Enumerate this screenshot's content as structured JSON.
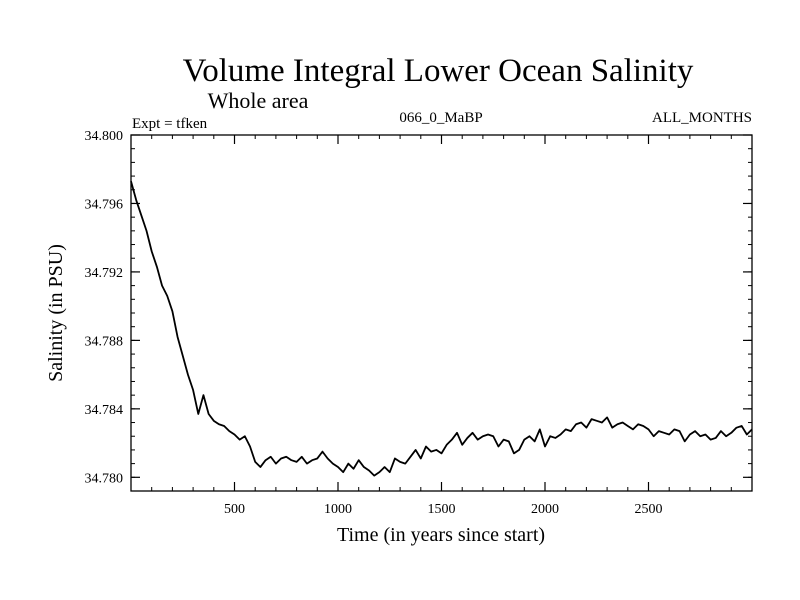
{
  "chart_data": {
    "type": "line",
    "title": "Volume Integral Lower Ocean Salinity",
    "subtitle": "Whole area",
    "left_label": "Expt = tfken",
    "center_label": "066_0_MaBP",
    "right_label": "ALL_MONTHS",
    "xlabel": "Time (in years since start)",
    "ylabel": "Salinity (in PSU)",
    "xlim": [
      0,
      3000
    ],
    "ylim": [
      34.7792,
      34.8
    ],
    "x_ticks": [
      500,
      1000,
      1500,
      2000,
      2500
    ],
    "x_tick_labels": [
      "500",
      "1000",
      "1500",
      "2000",
      "2500"
    ],
    "y_ticks": [
      34.78,
      34.784,
      34.788,
      34.792,
      34.796,
      34.8
    ],
    "y_tick_labels": [
      "34.780",
      "34.784",
      "34.788",
      "34.792",
      "34.796",
      "34.800"
    ],
    "grid": false,
    "series": [
      {
        "color": "#000000",
        "x": [
          0,
          25,
          50,
          75,
          100,
          125,
          150,
          175,
          200,
          225,
          250,
          275,
          300,
          325,
          350,
          375,
          400,
          425,
          450,
          475,
          500,
          525,
          550,
          575,
          600,
          625,
          650,
          675,
          700,
          725,
          750,
          775,
          800,
          825,
          850,
          875,
          900,
          925,
          950,
          975,
          1000,
          1025,
          1050,
          1075,
          1100,
          1125,
          1150,
          1175,
          1200,
          1225,
          1250,
          1275,
          1300,
          1325,
          1350,
          1375,
          1400,
          1425,
          1450,
          1475,
          1500,
          1525,
          1550,
          1575,
          1600,
          1625,
          1650,
          1675,
          1700,
          1725,
          1750,
          1775,
          1800,
          1825,
          1850,
          1875,
          1900,
          1925,
          1950,
          1975,
          2000,
          2025,
          2050,
          2075,
          2100,
          2125,
          2150,
          2175,
          2200,
          2225,
          2250,
          2275,
          2300,
          2325,
          2350,
          2375,
          2400,
          2425,
          2450,
          2475,
          2500,
          2525,
          2550,
          2575,
          2600,
          2625,
          2650,
          2675,
          2700,
          2725,
          2750,
          2775,
          2800,
          2825,
          2850,
          2875,
          2900,
          2925,
          2950,
          2975,
          3000
        ],
        "values": [
          34.7973,
          34.7962,
          34.7953,
          34.7944,
          34.7932,
          34.7923,
          34.7912,
          34.7906,
          34.7897,
          34.7882,
          34.7871,
          34.786,
          34.7851,
          34.7837,
          34.7848,
          34.7837,
          34.7833,
          34.7831,
          34.783,
          34.7827,
          34.7825,
          34.7822,
          34.7824,
          34.7818,
          34.7809,
          34.7806,
          34.781,
          34.7812,
          34.7808,
          34.7811,
          34.7812,
          34.781,
          34.7809,
          34.7812,
          34.7808,
          34.781,
          34.7811,
          34.7815,
          34.7811,
          34.7808,
          34.7806,
          34.7803,
          34.7808,
          34.7805,
          34.781,
          34.7806,
          34.7804,
          34.7801,
          34.7803,
          34.7806,
          34.7803,
          34.7811,
          34.7809,
          34.7808,
          34.7812,
          34.7816,
          34.7811,
          34.7818,
          34.7815,
          34.7816,
          34.7814,
          34.7819,
          34.7822,
          34.7826,
          34.7819,
          34.7823,
          34.7826,
          34.7822,
          34.7824,
          34.7825,
          34.7824,
          34.7818,
          34.7822,
          34.7821,
          34.7814,
          34.7816,
          34.7822,
          34.7824,
          34.7821,
          34.7828,
          34.7818,
          34.7824,
          34.7823,
          34.7825,
          34.7828,
          34.7827,
          34.7831,
          34.7832,
          34.7829,
          34.7834,
          34.7833,
          34.7832,
          34.7835,
          34.7829,
          34.7831,
          34.7832,
          34.783,
          34.7828,
          34.7831,
          34.783,
          34.7828,
          34.7824,
          34.7827,
          34.7826,
          34.7825,
          34.7828,
          34.7827,
          34.7821,
          34.7825,
          34.7827,
          34.7824,
          34.7825,
          34.7822,
          34.7823,
          34.7827,
          34.7824,
          34.7826,
          34.7829,
          34.783,
          34.7825,
          34.7828
        ]
      }
    ]
  }
}
